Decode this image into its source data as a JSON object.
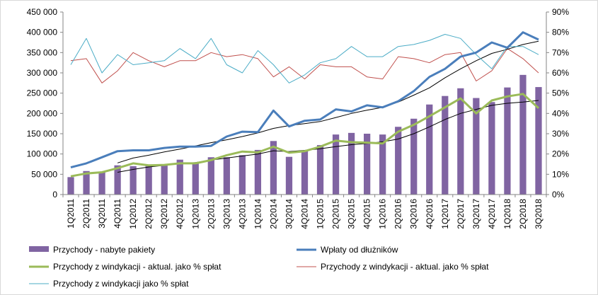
{
  "chart_data": {
    "type": "bar",
    "title": "",
    "xlabel": "",
    "ylabel": "",
    "y2label": "",
    "ylim": [
      0,
      450000
    ],
    "y2lim": [
      0,
      0.9
    ],
    "grid": false,
    "legend_position": "bottom",
    "y_ticks": [
      "0",
      "50 000",
      "100 000",
      "150 000",
      "200 000",
      "250 000",
      "300 000",
      "350 000",
      "400 000",
      "450 000"
    ],
    "y2_ticks": [
      "0%",
      "10%",
      "20%",
      "30%",
      "40%",
      "50%",
      "60%",
      "70%",
      "80%",
      "90%"
    ],
    "categories": [
      "1Q2011",
      "2Q2011",
      "3Q2011",
      "4Q2011",
      "1Q2012",
      "2Q2012",
      "3Q2012",
      "4Q2012",
      "1Q2013",
      "2Q2013",
      "3Q2013",
      "4Q2013",
      "1Q2014",
      "2Q2014",
      "3Q2014",
      "4Q2014",
      "1Q2015",
      "2Q2015",
      "3Q2015",
      "4Q2015",
      "1Q2016",
      "2Q2016",
      "3Q2016",
      "4Q2016",
      "1Q2017",
      "2Q2017",
      "3Q2017",
      "4Q2017",
      "1Q2018",
      "2Q2018",
      "3Q2018"
    ],
    "series": [
      {
        "name": "Przychody - nabyte pakiety",
        "type": "bar",
        "axis": "left",
        "color": "#8064a2",
        "values": [
          43000,
          58000,
          55000,
          72000,
          70000,
          72000,
          75000,
          86000,
          77000,
          92000,
          92000,
          97000,
          110000,
          132000,
          93000,
          108000,
          122000,
          148000,
          152000,
          150000,
          148000,
          167000,
          187000,
          222000,
          243000,
          262000,
          238000,
          228000,
          264000,
          295000,
          265000
        ]
      },
      {
        "name": "Wpłaty od dłużników",
        "type": "line",
        "axis": "left",
        "color": "#4a7ebb",
        "width": 3,
        "values": [
          67000,
          77000,
          92000,
          107000,
          109000,
          109000,
          115000,
          118000,
          118000,
          120000,
          143000,
          155000,
          154000,
          207000,
          168000,
          182000,
          185000,
          210000,
          205000,
          220000,
          215000,
          230000,
          255000,
          290000,
          310000,
          340000,
          350000,
          375000,
          362000,
          400000,
          382000
        ]
      },
      {
        "name": "Przychody z windykacji - aktual. jako % spłat",
        "type": "line",
        "axis": "left",
        "color": "#9bbb59",
        "width": 3,
        "values": [
          45000,
          52000,
          55000,
          65000,
          77000,
          72000,
          73000,
          77000,
          77000,
          85000,
          97000,
          106000,
          104000,
          118000,
          103000,
          107000,
          118000,
          133000,
          129000,
          128000,
          126000,
          155000,
          172000,
          193000,
          215000,
          237000,
          200000,
          232000,
          242000,
          248000,
          213000
        ]
      },
      {
        "name": "Przychody z windykacji - aktual. jako % spłat",
        "type": "line",
        "axis": "right",
        "color": "#c0504d",
        "width": 1,
        "values": [
          0.66,
          0.67,
          0.55,
          0.61,
          0.7,
          0.66,
          0.63,
          0.66,
          0.66,
          0.7,
          0.68,
          0.69,
          0.67,
          0.58,
          0.63,
          0.57,
          0.64,
          0.63,
          0.63,
          0.58,
          0.57,
          0.68,
          0.67,
          0.65,
          0.69,
          0.7,
          0.56,
          0.61,
          0.72,
          0.67,
          0.6
        ]
      },
      {
        "name": "",
        "type": "line",
        "axis": "left",
        "color": "#000000",
        "width": 1,
        "values": [
          null,
          null,
          null,
          78000,
          90000,
          97000,
          105000,
          112000,
          120000,
          128000,
          135000,
          143000,
          152000,
          163000,
          170000,
          175000,
          180000,
          190000,
          200000,
          208000,
          215000,
          228000,
          245000,
          263000,
          288000,
          310000,
          330000,
          348000,
          358000,
          370000,
          378000
        ]
      },
      {
        "name": "",
        "type": "line",
        "axis": "left",
        "color": "#000000",
        "width": 1,
        "values": [
          null,
          null,
          null,
          55000,
          62000,
          68000,
          72000,
          76000,
          79000,
          85000,
          90000,
          95000,
          100000,
          108000,
          106000,
          109000,
          113000,
          118000,
          123000,
          126000,
          130000,
          137000,
          150000,
          167000,
          185000,
          200000,
          210000,
          220000,
          225000,
          228000,
          232000
        ]
      },
      {
        "name": "Przychody z windykacji jako % spłat",
        "type": "line",
        "axis": "right",
        "color": "#4bacc6",
        "width": 1,
        "values": [
          0.64,
          0.77,
          0.6,
          0.69,
          0.64,
          0.65,
          0.66,
          0.72,
          0.67,
          0.77,
          0.64,
          0.6,
          0.71,
          0.64,
          0.55,
          0.59,
          0.65,
          0.67,
          0.73,
          0.68,
          0.68,
          0.73,
          0.74,
          0.76,
          0.79,
          0.77,
          0.69,
          0.62,
          0.73,
          0.73,
          0.69
        ]
      }
    ],
    "legend": [
      {
        "label": "Przychody - nabyte pakiety",
        "color": "#8064a2",
        "kind": "bar"
      },
      {
        "label": "Wpłaty od dłużników",
        "color": "#4a7ebb",
        "kind": "line",
        "width": 3
      },
      {
        "label": "Przychody z windykacji - aktual. jako % spłat",
        "color": "#9bbb59",
        "kind": "line",
        "width": 3
      },
      {
        "label": "Przychody z windykacji - aktual. jako % spłat",
        "color": "#c0504d",
        "kind": "line",
        "width": 1
      },
      {
        "label": "Przychody z windykacji jako % spłat",
        "color": "#4bacc6",
        "kind": "line",
        "width": 1
      }
    ]
  }
}
